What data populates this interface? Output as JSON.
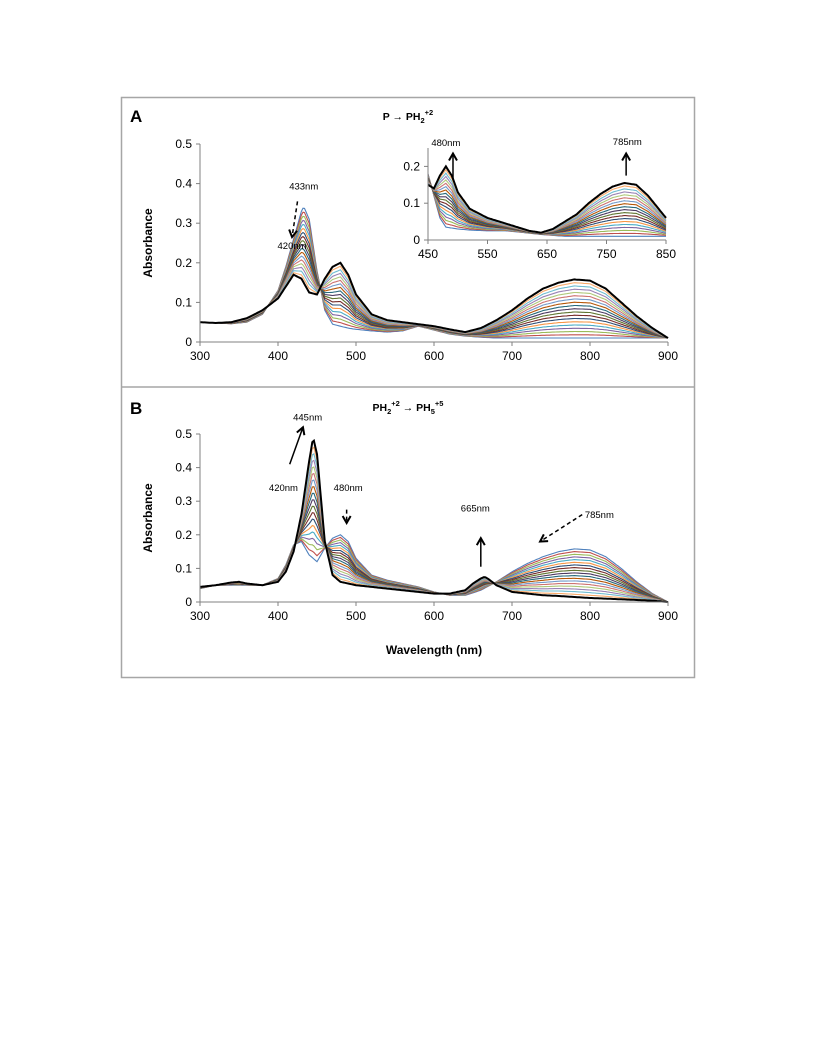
{
  "colors": {
    "frame": "#a6a6a6",
    "axis": "#808080",
    "final_trace": "#000000",
    "series_palette": [
      "#4f81bd",
      "#c0504d",
      "#9bbb59",
      "#8064a2",
      "#4bacc6",
      "#f79646",
      "#2c4d75",
      "#772c2a",
      "#5f7530",
      "#4d3b62",
      "#276a7c",
      "#b65708",
      "#729aca",
      "#cd7371",
      "#afc97a",
      "#9983b5",
      "#6fbdd1",
      "#f9ab6b"
    ],
    "fill_gray": "#a6a6a6"
  },
  "chart_data": [
    {
      "panel": "A",
      "type": "line",
      "title_parts": {
        "pre": "P → PH",
        "sub": "2",
        "sup": "+2"
      },
      "ylabel": "Absorbance",
      "xlim": [
        300,
        900
      ],
      "ylim": [
        0,
        0.5
      ],
      "x_ticks": [
        300,
        400,
        500,
        600,
        700,
        800,
        900
      ],
      "y_ticks": [
        0,
        0.1,
        0.2,
        0.3,
        0.4,
        0.5
      ],
      "y_tick_labels": [
        "0",
        "0.1",
        "0.2",
        "0.3",
        "0.4",
        "0.5"
      ],
      "x_tick_labels": [
        "300",
        "400",
        "500",
        "600",
        "700",
        "800",
        "900"
      ],
      "series_count": 18,
      "initial_spectrum": {
        "x": [
          300,
          320,
          340,
          360,
          380,
          400,
          410,
          420,
          430,
          433,
          440,
          450,
          460,
          470,
          480,
          490,
          500,
          520,
          540,
          560,
          580,
          600,
          620,
          640,
          660,
          680,
          700,
          720,
          740,
          760,
          780,
          800,
          820,
          840,
          860,
          880,
          900
        ],
        "y": [
          0.05,
          0.048,
          0.046,
          0.05,
          0.07,
          0.13,
          0.19,
          0.26,
          0.33,
          0.342,
          0.31,
          0.18,
          0.08,
          0.045,
          0.04,
          0.035,
          0.032,
          0.028,
          0.025,
          0.028,
          0.04,
          0.03,
          0.02,
          0.015,
          0.012,
          0.01,
          0.01,
          0.01,
          0.01,
          0.01,
          0.01,
          0.01,
          0.01,
          0.01,
          0.01,
          0.01,
          0.01
        ]
      },
      "final_spectrum": {
        "x": [
          300,
          320,
          340,
          360,
          380,
          400,
          410,
          420,
          430,
          440,
          450,
          460,
          470,
          480,
          490,
          500,
          520,
          540,
          560,
          580,
          600,
          620,
          640,
          660,
          680,
          700,
          720,
          740,
          760,
          780,
          800,
          820,
          840,
          860,
          880,
          900
        ],
        "y": [
          0.05,
          0.048,
          0.05,
          0.06,
          0.08,
          0.11,
          0.14,
          0.17,
          0.16,
          0.125,
          0.12,
          0.16,
          0.19,
          0.2,
          0.17,
          0.12,
          0.07,
          0.055,
          0.05,
          0.045,
          0.04,
          0.032,
          0.025,
          0.035,
          0.055,
          0.08,
          0.11,
          0.135,
          0.15,
          0.158,
          0.155,
          0.135,
          0.1,
          0.065,
          0.035,
          0.01
        ]
      },
      "annotations": [
        {
          "text": "433nm",
          "x": 433,
          "y": 0.385
        },
        {
          "text": "420nm",
          "x": 418,
          "y": 0.235
        }
      ],
      "arrows": [
        {
          "style": "dashed",
          "from": [
            425,
            0.355
          ],
          "to": [
            418,
            0.265
          ]
        }
      ],
      "inset": {
        "xlim": [
          450,
          850
        ],
        "ylim": [
          0,
          0.25
        ],
        "x_ticks": [
          450,
          550,
          650,
          750,
          850
        ],
        "x_tick_labels": [
          "450",
          "550",
          "650",
          "750",
          "850"
        ],
        "y_ticks": [
          0,
          0.1,
          0.2
        ],
        "y_tick_labels": [
          "0",
          "0.1",
          "0.2"
        ],
        "initial_spectrum": {
          "x": [
            450,
            460,
            470,
            480,
            500,
            520,
            550,
            580,
            600,
            640,
            680,
            720,
            760,
            800,
            850
          ],
          "y": [
            0.18,
            0.12,
            0.06,
            0.035,
            0.03,
            0.027,
            0.025,
            0.025,
            0.022,
            0.015,
            0.01,
            0.01,
            0.01,
            0.01,
            0.01
          ]
        },
        "final_spectrum": {
          "x": [
            450,
            460,
            470,
            480,
            490,
            500,
            520,
            550,
            580,
            600,
            620,
            640,
            660,
            680,
            700,
            720,
            740,
            760,
            780,
            800,
            820,
            850
          ],
          "y": [
            0.15,
            0.14,
            0.175,
            0.2,
            0.175,
            0.13,
            0.085,
            0.06,
            0.045,
            0.035,
            0.025,
            0.02,
            0.03,
            0.05,
            0.07,
            0.1,
            0.125,
            0.145,
            0.155,
            0.15,
            0.12,
            0.06
          ]
        },
        "annotations": [
          {
            "text": "480nm",
            "x": 480,
            "y": 0.255
          },
          {
            "text": "785nm",
            "x": 785,
            "y": 0.258
          }
        ],
        "arrows": [
          {
            "style": "solid",
            "from": [
              492,
              0.165
            ],
            "to": [
              492,
              0.235
            ]
          },
          {
            "style": "solid",
            "from": [
              783,
              0.175
            ],
            "to": [
              783,
              0.235
            ]
          }
        ]
      }
    },
    {
      "panel": "B",
      "type": "line",
      "title_parts": {
        "pre": "PH",
        "sub": "2",
        "sup": "+2",
        "mid": " → PH",
        "sub2": "5",
        "sup2": "+5"
      },
      "xlabel": "Wavelength (nm)",
      "ylabel": "Absorbance",
      "xlim": [
        300,
        900
      ],
      "ylim": [
        0,
        0.5
      ],
      "x_ticks": [
        300,
        400,
        500,
        600,
        700,
        800,
        900
      ],
      "y_ticks": [
        0,
        0.1,
        0.2,
        0.3,
        0.4,
        0.5
      ],
      "y_tick_labels": [
        "0",
        "0.1",
        "0.2",
        "0.3",
        "0.4",
        "0.5"
      ],
      "x_tick_labels": [
        "300",
        "400",
        "500",
        "600",
        "700",
        "800",
        "900"
      ],
      "series_count": 18,
      "initial_spectrum": {
        "x": [
          300,
          320,
          340,
          360,
          380,
          400,
          410,
          420,
          430,
          440,
          450,
          460,
          470,
          480,
          490,
          500,
          520,
          540,
          560,
          580,
          600,
          620,
          640,
          660,
          680,
          700,
          720,
          740,
          760,
          780,
          800,
          820,
          840,
          860,
          880,
          900
        ],
        "y": [
          0.04,
          0.05,
          0.05,
          0.05,
          0.05,
          0.07,
          0.11,
          0.17,
          0.18,
          0.14,
          0.12,
          0.16,
          0.19,
          0.2,
          0.18,
          0.13,
          0.08,
          0.065,
          0.055,
          0.045,
          0.03,
          0.02,
          0.02,
          0.035,
          0.06,
          0.09,
          0.115,
          0.135,
          0.15,
          0.158,
          0.155,
          0.135,
          0.1,
          0.06,
          0.025,
          0.0
        ]
      },
      "final_spectrum": {
        "x": [
          300,
          320,
          340,
          350,
          360,
          380,
          400,
          410,
          420,
          430,
          440,
          445,
          450,
          460,
          470,
          480,
          490,
          500,
          520,
          540,
          560,
          580,
          600,
          620,
          640,
          650,
          660,
          665,
          670,
          680,
          700,
          720,
          740,
          760,
          780,
          800,
          820,
          840,
          860,
          880,
          900
        ],
        "y": [
          0.045,
          0.05,
          0.058,
          0.06,
          0.055,
          0.05,
          0.06,
          0.09,
          0.15,
          0.26,
          0.42,
          0.49,
          0.44,
          0.18,
          0.08,
          0.06,
          0.055,
          0.05,
          0.045,
          0.04,
          0.035,
          0.03,
          0.025,
          0.025,
          0.035,
          0.055,
          0.07,
          0.075,
          0.068,
          0.05,
          0.03,
          0.025,
          0.02,
          0.018,
          0.015,
          0.012,
          0.01,
          0.008,
          0.006,
          0.004,
          0.0
        ]
      },
      "annotations": [
        {
          "text": "445nm",
          "x": 438,
          "y": 0.54
        },
        {
          "text": "420nm",
          "x": 407,
          "y": 0.33
        },
        {
          "text": "480nm",
          "x": 490,
          "y": 0.33
        },
        {
          "text": "665nm",
          "x": 653,
          "y": 0.27
        },
        {
          "text": "785nm",
          "x": 812,
          "y": 0.25
        }
      ],
      "arrows": [
        {
          "style": "solid",
          "from": [
            415,
            0.41
          ],
          "to": [
            432,
            0.52
          ]
        },
        {
          "style": "dashed",
          "from": [
            488,
            0.275
          ],
          "to": [
            488,
            0.235
          ]
        },
        {
          "style": "solid",
          "from": [
            660,
            0.105
          ],
          "to": [
            660,
            0.19
          ]
        },
        {
          "style": "dashed",
          "from": [
            790,
            0.26
          ],
          "to": [
            736,
            0.18
          ]
        }
      ]
    }
  ]
}
